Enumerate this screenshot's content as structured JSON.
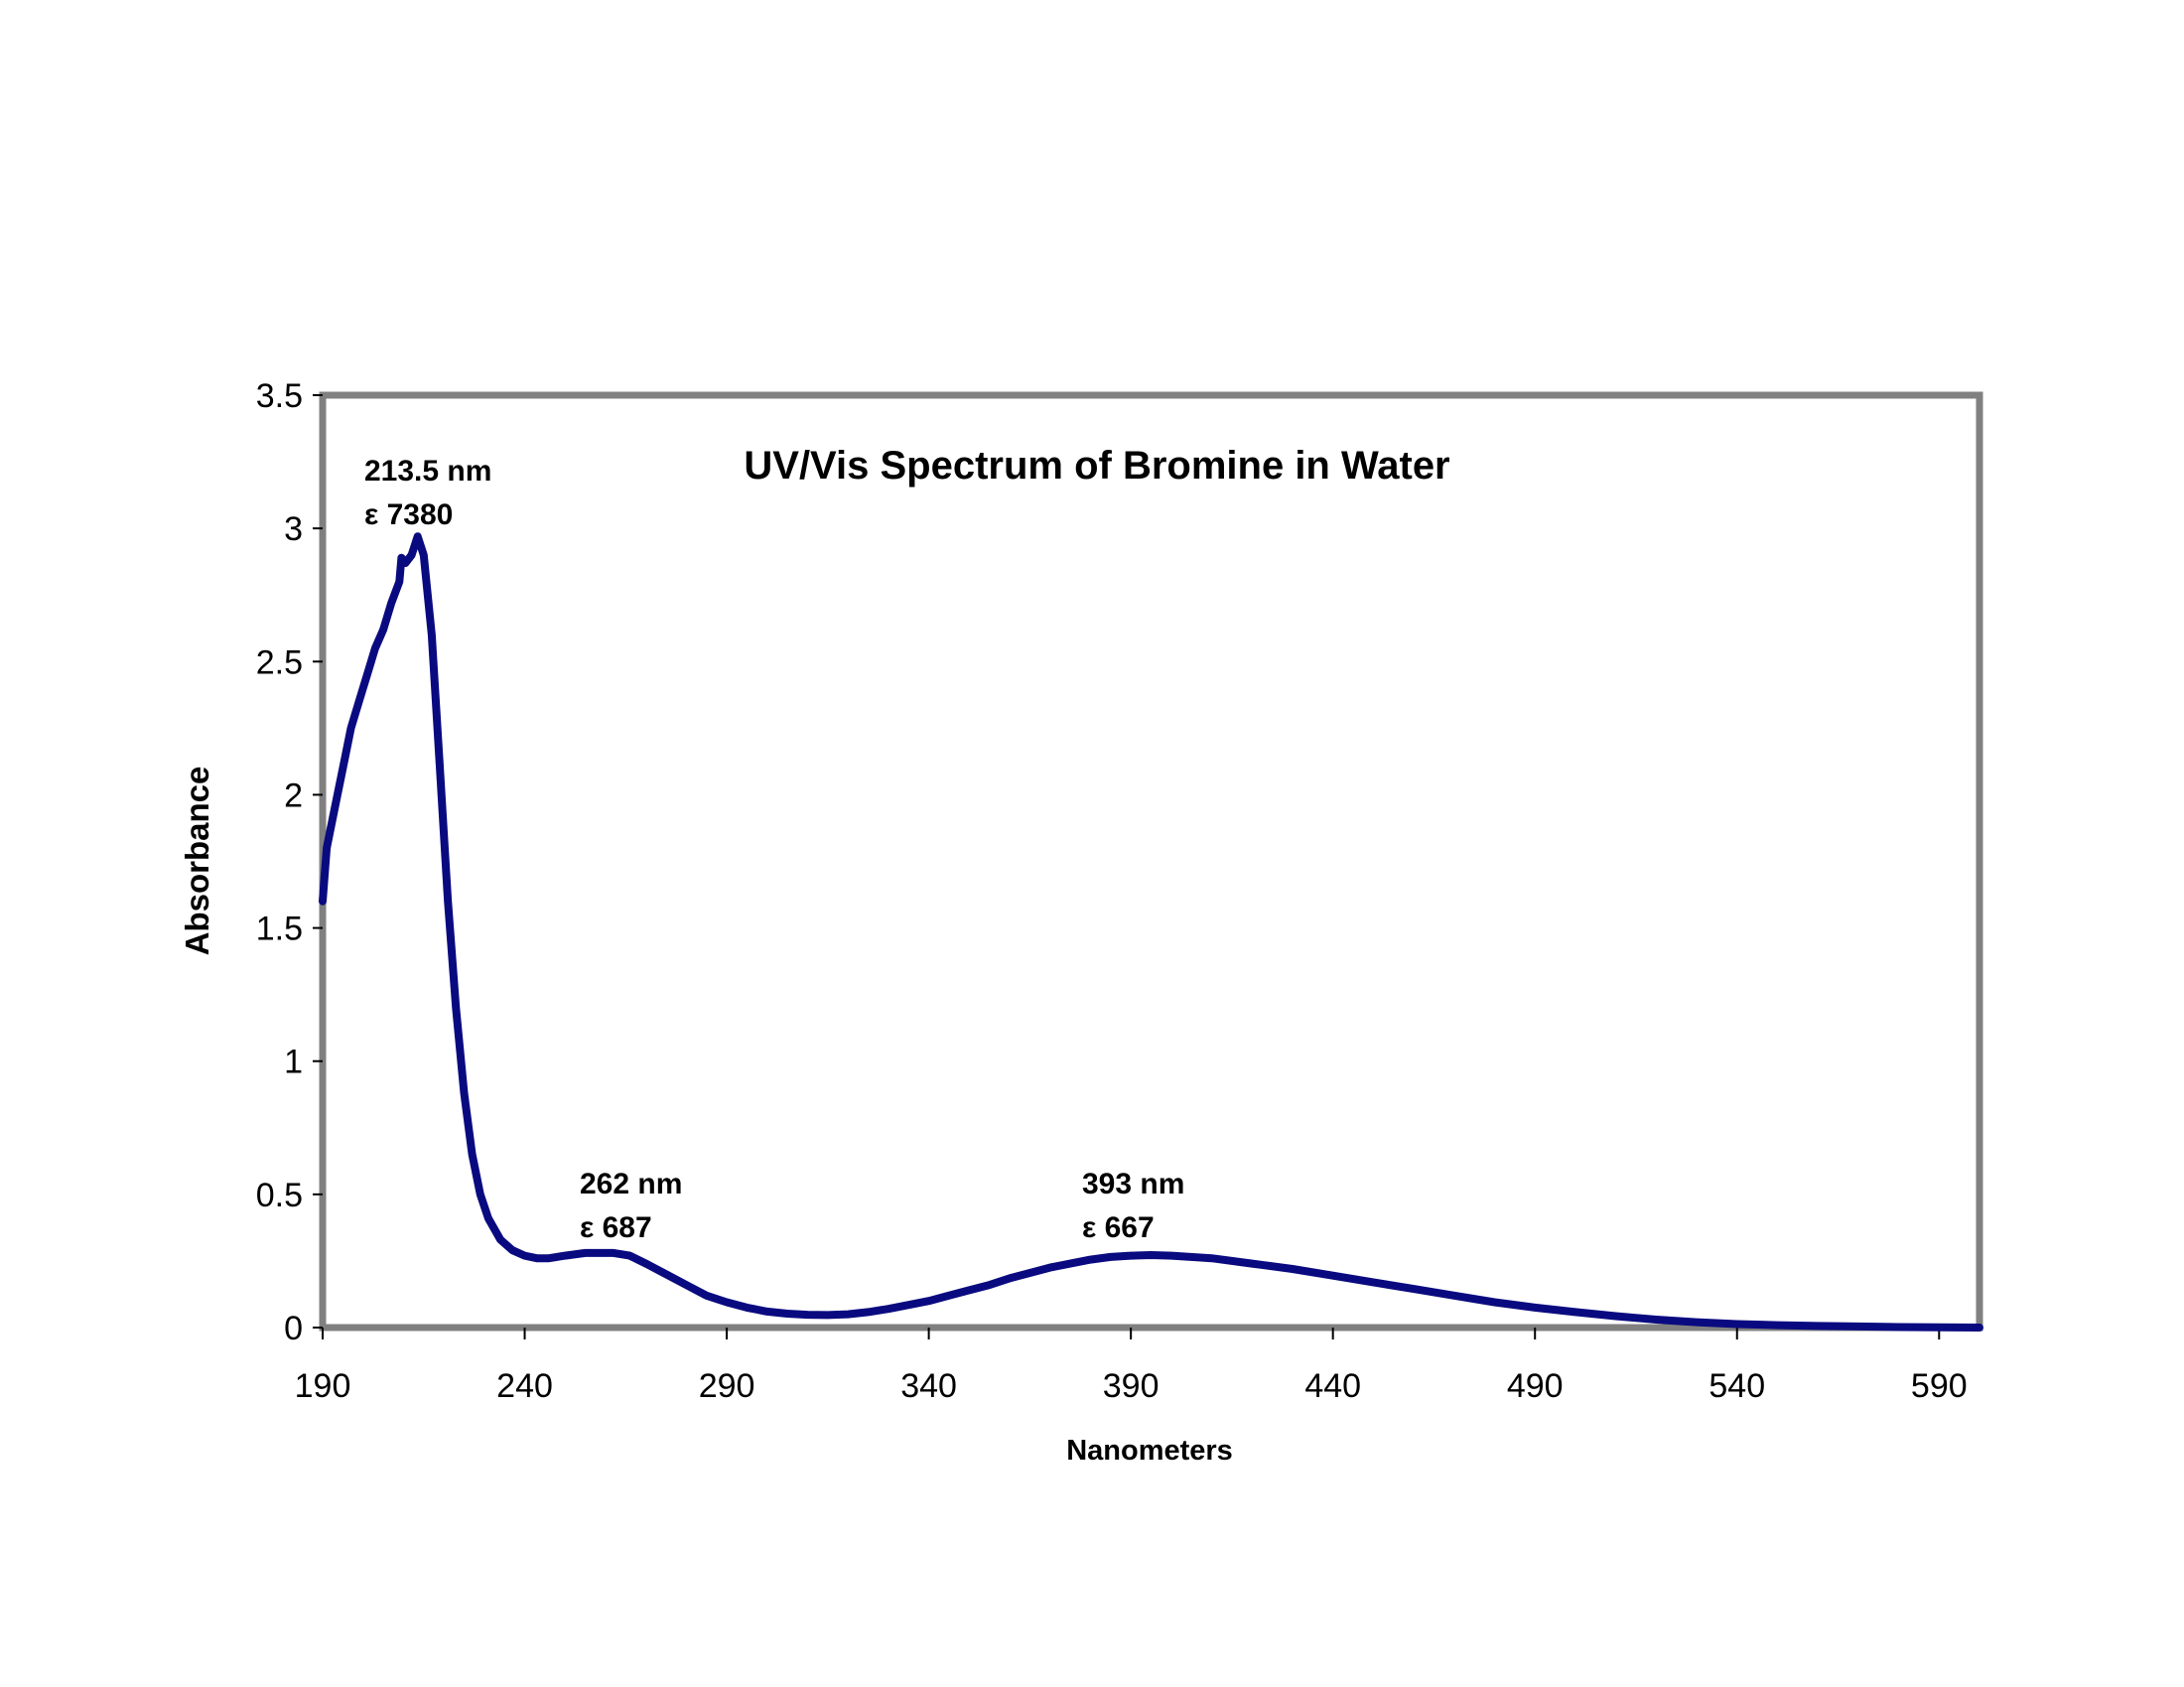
{
  "chart_data": {
    "type": "line",
    "title": "UV/Vis Spectrum of Bromine in Water",
    "xlabel": "Nanometers",
    "ylabel": "Absorbance",
    "xlim": [
      190,
      600
    ],
    "ylim": [
      0,
      3.5
    ],
    "xticks": [
      "190",
      "240",
      "290",
      "340",
      "390",
      "440",
      "490",
      "540",
      "590"
    ],
    "yticks": [
      "0",
      "0.5",
      "1",
      "1.5",
      "2",
      "2.5",
      "3",
      "3.5"
    ],
    "grid": false,
    "colors": {
      "line": "#0a0a80",
      "frame": "#808080"
    },
    "series": [
      {
        "name": "Bromine in Water",
        "x": [
          190,
          191,
          193,
          195,
          197,
          199,
          201,
          203,
          205,
          207,
          209,
          209.5,
          210.5,
          212,
          213.5,
          215,
          217,
          219,
          221,
          223,
          225,
          227,
          229,
          231,
          234,
          237,
          240,
          243,
          246,
          250,
          255,
          262,
          266,
          270,
          275,
          280,
          285,
          290,
          295,
          300,
          305,
          310,
          315,
          320,
          325,
          330,
          335,
          340,
          345,
          350,
          355,
          360,
          365,
          370,
          375,
          380,
          385,
          390,
          395,
          400,
          410,
          420,
          430,
          440,
          450,
          460,
          470,
          480,
          490,
          500,
          510,
          520,
          530,
          540,
          550,
          560,
          570,
          580,
          590,
          600
        ],
        "y": [
          1.6,
          1.8,
          1.95,
          2.1,
          2.25,
          2.35,
          2.45,
          2.55,
          2.62,
          2.72,
          2.8,
          2.89,
          2.87,
          2.9,
          2.97,
          2.9,
          2.6,
          2.1,
          1.6,
          1.2,
          0.88,
          0.65,
          0.5,
          0.41,
          0.33,
          0.29,
          0.27,
          0.26,
          0.26,
          0.27,
          0.28,
          0.28,
          0.27,
          0.24,
          0.2,
          0.16,
          0.12,
          0.095,
          0.075,
          0.06,
          0.052,
          0.048,
          0.047,
          0.05,
          0.058,
          0.07,
          0.085,
          0.1,
          0.12,
          0.14,
          0.16,
          0.185,
          0.205,
          0.225,
          0.24,
          0.255,
          0.265,
          0.27,
          0.272,
          0.27,
          0.26,
          0.24,
          0.22,
          0.195,
          0.17,
          0.145,
          0.12,
          0.095,
          0.075,
          0.058,
          0.043,
          0.03,
          0.02,
          0.013,
          0.009,
          0.006,
          0.004,
          0.002,
          0.001,
          0
        ]
      }
    ],
    "annotations": [
      {
        "line1": "213.5 nm",
        "line2": "ε 7380",
        "x": 213.5
      },
      {
        "line1": "262 nm",
        "line2": "ε 687",
        "x": 262
      },
      {
        "line1": "393 nm",
        "line2": "ε 667",
        "x": 393
      }
    ]
  }
}
